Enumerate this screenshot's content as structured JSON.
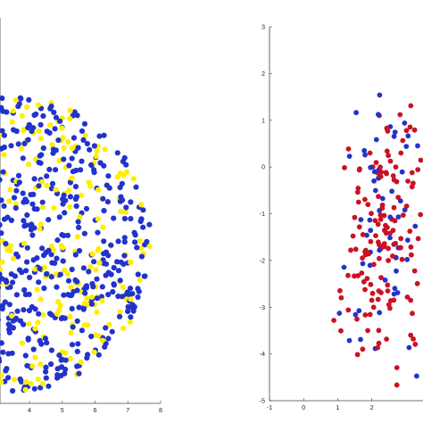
{
  "chart_data": [
    {
      "type": "scatter",
      "title": "",
      "xlabel": "",
      "ylabel": "",
      "xlim": [
        3.1,
        8
      ],
      "ylim": [
        -5,
        3
      ],
      "x_ticks": [
        "4",
        "5",
        "6",
        "7",
        "8"
      ],
      "x_tick_values": [
        4,
        5,
        6,
        7,
        8
      ],
      "grid": false,
      "series": [
        {
          "color": "#ffee00",
          "count": 190
        },
        {
          "color": "#2233cc",
          "count": 430
        }
      ]
    },
    {
      "type": "scatter",
      "title": "",
      "xlabel": "",
      "ylabel": "",
      "xlim": [
        -1,
        3.5
      ],
      "ylim": [
        -5,
        3
      ],
      "x_ticks": [
        "-1",
        "0",
        "1",
        "2"
      ],
      "x_tick_values": [
        -1,
        0,
        1,
        2
      ],
      "y_ticks": [
        "3",
        "2",
        "1",
        "0",
        "-1",
        "-2",
        "-3",
        "-4",
        "-5"
      ],
      "y_tick_values": [
        3,
        2,
        1,
        0,
        -1,
        -2,
        -3,
        -4,
        -5
      ],
      "grid": false,
      "series": [
        {
          "color": "#cc1122",
          "count": 150
        },
        {
          "color": "#2233cc",
          "count": 60
        }
      ]
    }
  ]
}
